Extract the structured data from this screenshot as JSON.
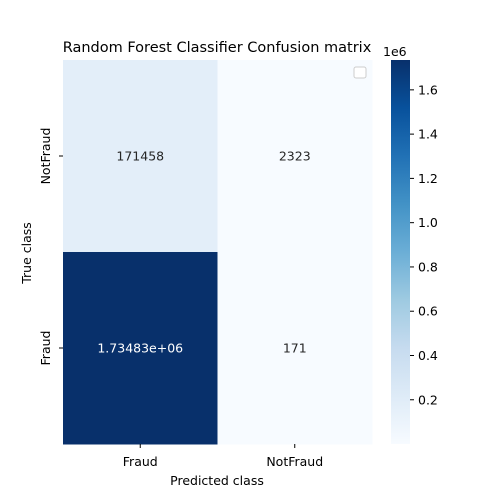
{
  "chart_data": {
    "type": "heatmap",
    "title": "Random Forest Classifier Confusion matrix",
    "xlabel": "Predicted class",
    "ylabel": "True class",
    "x_categories": [
      "Fraud",
      "NotFraud"
    ],
    "y_categories": [
      "NotFraud",
      "Fraud"
    ],
    "values": [
      [
        171458,
        2323
      ],
      [
        1734830,
        171
      ]
    ],
    "annotations": [
      [
        "171458",
        "2323"
      ],
      [
        "1.73483e+06",
        "171"
      ]
    ],
    "colormap": "Blues",
    "color_min": 171,
    "color_max": 1734830,
    "colorbar": {
      "ticks": [
        0.2,
        0.4,
        0.6,
        0.8,
        1.0,
        1.2,
        1.4,
        1.6
      ],
      "tick_labels": [
        "0.2",
        "0.4",
        "0.6",
        "0.8",
        "1.0",
        "1.2",
        "1.4",
        "1.6"
      ],
      "scale_label": "1e6",
      "scale": 1000000
    },
    "legend": {
      "entries": [],
      "placement": "upper-right"
    }
  }
}
